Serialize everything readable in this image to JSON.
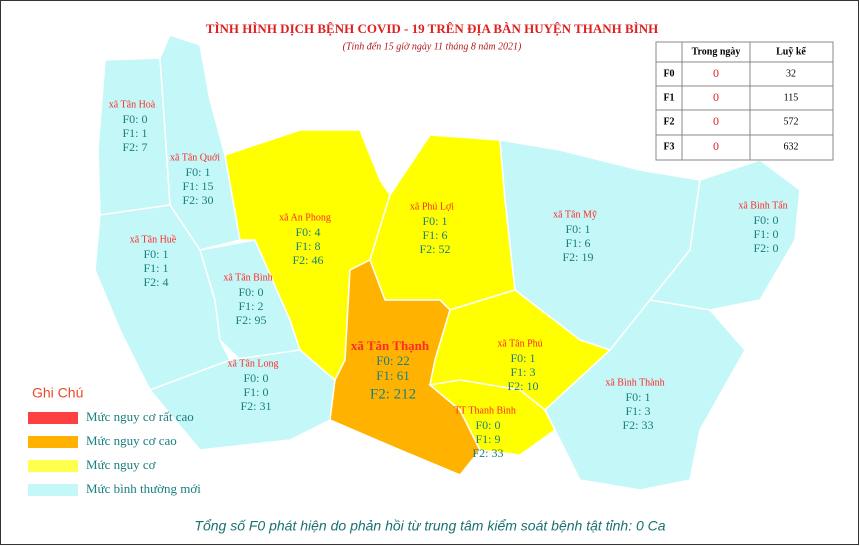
{
  "title": "TÌNH HÌNH DỊCH BỆNH COVID - 19 TRÊN ĐỊA BÀN HUYỆN THANH BÌNH",
  "subtitle": "(Tính đến 15 giờ ngày 11 tháng 8 năm 2021)",
  "table": {
    "header": [
      "Trong ngày",
      "Luỹ kế"
    ],
    "rows": [
      [
        "F0",
        0,
        32
      ],
      [
        "F1",
        0,
        115
      ],
      [
        "F2",
        0,
        572
      ],
      [
        "F3",
        0,
        632
      ]
    ]
  },
  "regions": [
    {
      "name": "xã Tân Hoà",
      "lines": [
        "F0: 0",
        "F1: 1",
        "F2: 7"
      ]
    },
    {
      "name": "xã Tân Quới",
      "lines": [
        "F0: 1",
        "F1: 15",
        "F2: 30"
      ]
    },
    {
      "name": "xã Tân Huề",
      "lines": [
        "F0: 1",
        "F1: 1",
        "F2: 4"
      ]
    },
    {
      "name": "xã Tân Bình",
      "lines": [
        "F0: 0",
        "F1: 2",
        "F2: 95"
      ]
    },
    {
      "name": "xã Tân Long",
      "lines": [
        "F0: 0",
        "F1: 0",
        "F2: 31"
      ]
    },
    {
      "name": "xã An Phong",
      "lines": [
        "F0: 4",
        "F1: 8",
        "F2: 46"
      ]
    },
    {
      "name": "xã Phú Lợi",
      "lines": [
        "F0: 1",
        "F1: 6",
        "F2: 52"
      ]
    },
    {
      "name": "xã Tân Thạnh",
      "lines": [
        "F0: 22",
        "F1: 61",
        "F2: 212"
      ]
    },
    {
      "name": "xã Tân Mỹ",
      "lines": [
        "F0: 1",
        "F1: 6",
        "F2: 19"
      ]
    },
    {
      "name": "xã Bình Tấn",
      "lines": [
        "F0: 0",
        "F1: 0",
        "F2: 0"
      ]
    },
    {
      "name": "xã Tân Phú",
      "lines": [
        "F0: 1",
        "F1: 3",
        "F2: 10"
      ]
    },
    {
      "name": "TT Thanh Bình",
      "lines": [
        "F0: 0",
        "F1: 9",
        "F2: 33"
      ]
    },
    {
      "name": "xã Bình Thành",
      "lines": [
        "F0: 1",
        "F1: 3",
        "F2: 33"
      ]
    }
  ],
  "legend": {
    "title": "Ghi Chú",
    "items": [
      {
        "label": "Mức  nguy cơ rất cao",
        "color": "#ff4040"
      },
      {
        "label": "Mức  nguy cơ cao",
        "color": "#ffb300"
      },
      {
        "label": "Mức  nguy cơ",
        "color": "#ffff4d"
      },
      {
        "label": "Mức  bình thường mới",
        "color": "#c4f7f7"
      }
    ]
  },
  "footer": "Tổng số F0 phát hiện do phản hồi từ trung tâm kiểm soát bệnh tật tỉnh: 0 Ca"
}
